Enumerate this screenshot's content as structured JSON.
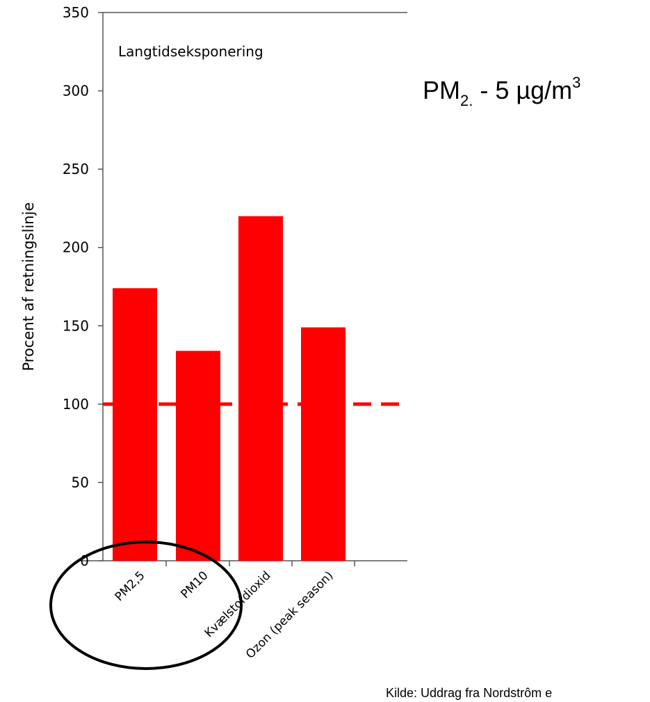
{
  "side_title": {
    "pm": "PM",
    "sub": "2.",
    "mid": " - 5 µg/m",
    "sup": "3"
  },
  "source_note": "Kilde: Uddrag fra Nordstrôm e",
  "chart_data": {
    "type": "bar",
    "title": "Langtidseksponering",
    "xlabel": "",
    "ylabel": "Procent af retningslinje",
    "ylim": [
      0,
      350
    ],
    "yticks": [
      0,
      50,
      100,
      150,
      200,
      250,
      300,
      350
    ],
    "categories": [
      "PM2,5",
      "PM10",
      "Kvælstofdioxid",
      "Ozon (peak season)"
    ],
    "values": [
      174,
      134,
      220,
      149
    ],
    "bar_color": "#ff0000",
    "reference_line": {
      "value": 100,
      "style": "dashed",
      "color": "#ff0000"
    },
    "grid": false
  },
  "annotation": {
    "shape": "ellipse",
    "color": "#000000",
    "encircles": [
      "PM2,5",
      "PM10"
    ]
  }
}
